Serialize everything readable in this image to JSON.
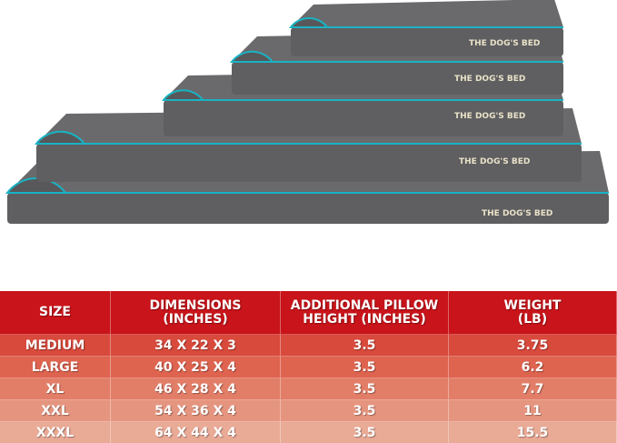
{
  "product_image": {
    "logo_text": "THE DOG'S BED",
    "colors": {
      "bed": "#5f5f61",
      "piping": "#19b3c4"
    }
  },
  "table": {
    "headers": [
      [
        "SIZE"
      ],
      [
        "DIMENSIONS",
        "(INCHES)"
      ],
      [
        "ADDITIONAL PILLOW",
        "HEIGHT (INCHES)"
      ],
      [
        "WEIGHT",
        "(LB)"
      ]
    ],
    "rows": [
      [
        "MEDIUM",
        "34 X 22 X 3",
        "3.5",
        "3.75"
      ],
      [
        "LARGE",
        "40 X 25 X 4",
        "3.5",
        "6.2"
      ],
      [
        "XL",
        "46 X 28 X 4",
        "3.5",
        "7.7"
      ],
      [
        "XXL",
        "54 X 36 X 4",
        "3.5",
        "11"
      ],
      [
        "XXXL",
        "64 X 44 X 4",
        "3.5",
        "15.5"
      ]
    ],
    "colors": {
      "header": "#c8141a",
      "row_start": "#d84a3c",
      "row_end": "#e9aa96"
    }
  }
}
